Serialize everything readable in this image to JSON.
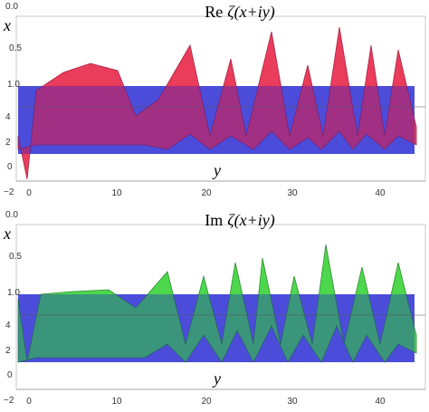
{
  "panels": [
    {
      "title_prefix": "Re",
      "title_function": "ζ(x+iy)",
      "x_label": "x",
      "y_label": "y",
      "x_ticks": [
        "0.0",
        "0.5",
        "1.0"
      ],
      "z_ticks": [
        "4",
        "2",
        "0",
        "−2"
      ],
      "y_ticks": [
        "0",
        "10",
        "20",
        "30",
        "40"
      ]
    },
    {
      "title_prefix": "Im",
      "title_function": "ζ(x+iy)",
      "x_label": "x",
      "y_label": "y",
      "x_ticks": [
        "0.0",
        "0.5",
        "1.0"
      ],
      "z_ticks": [
        "4",
        "2",
        "0",
        "−2"
      ],
      "y_ticks": [
        "0",
        "10",
        "20",
        "30",
        "40"
      ]
    }
  ]
}
